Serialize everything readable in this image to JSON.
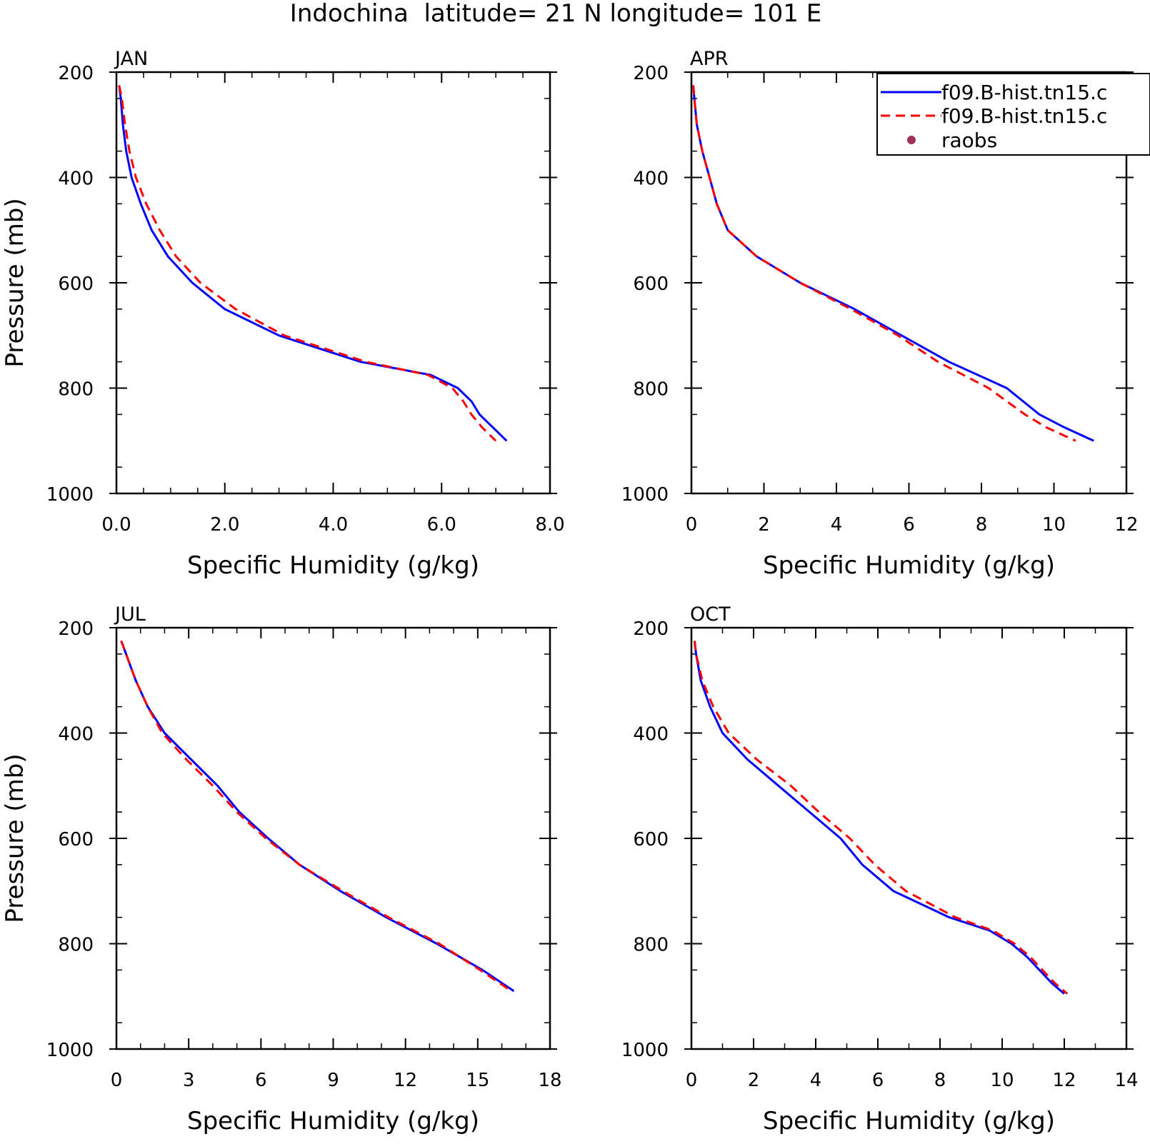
{
  "figure": {
    "title": "Indochina  latitude= 21 N longitude= 101 E"
  },
  "legend": {
    "placement": "top-right of APR panel",
    "entries": [
      {
        "label": "f09.B-hist.tn15.c",
        "color": "#0000ff",
        "style": "solid"
      },
      {
        "label": "f09.B-hist.tn15.c",
        "color": "#ff0000",
        "style": "dashed"
      },
      {
        "label": "raobs",
        "color": "#a0305a",
        "style": "marker"
      }
    ]
  },
  "chart_data": [
    {
      "type": "line",
      "panel_label": "JAN",
      "xlabel": "Specific Humidity (g/kg)",
      "ylabel": "Pressure (mb)",
      "xlim": [
        0,
        8
      ],
      "ylim": [
        1000,
        200
      ],
      "xticks": [
        "0.0",
        "2.0",
        "4.0",
        "6.0",
        "8.0"
      ],
      "yticks": [
        "200",
        "400",
        "600",
        "800",
        "1000"
      ],
      "y": [
        225,
        250,
        300,
        350,
        400,
        450,
        500,
        550,
        600,
        650,
        700,
        750,
        775,
        800,
        825,
        850,
        875,
        900
      ],
      "series": [
        {
          "name": "f09.B-hist.tn15.c",
          "color": "#0000ff",
          "style": "solid",
          "x": [
            0.05,
            0.08,
            0.12,
            0.18,
            0.28,
            0.45,
            0.65,
            0.95,
            1.4,
            2.0,
            3.0,
            4.5,
            5.8,
            6.3,
            6.55,
            6.7,
            6.95,
            7.2
          ]
        },
        {
          "name": "f09.B-hist.tn15.c",
          "color": "#ff0000",
          "style": "dashed",
          "x": [
            0.05,
            0.1,
            0.16,
            0.24,
            0.36,
            0.55,
            0.8,
            1.1,
            1.55,
            2.2,
            3.1,
            4.6,
            5.75,
            6.2,
            6.4,
            6.55,
            6.75,
            7.0
          ]
        }
      ]
    },
    {
      "type": "line",
      "panel_label": "APR",
      "xlabel": "Specific Humidity (g/kg)",
      "ylabel": "",
      "xlim": [
        0,
        12
      ],
      "ylim": [
        1000,
        200
      ],
      "xticks": [
        "0",
        "2",
        "4",
        "6",
        "8",
        "10",
        "12"
      ],
      "yticks": [
        "200",
        "400",
        "600",
        "800",
        "1000"
      ],
      "y": [
        225,
        250,
        300,
        350,
        400,
        450,
        500,
        550,
        600,
        650,
        700,
        750,
        800,
        850,
        875,
        900
      ],
      "series": [
        {
          "name": "f09.B-hist.tn15.c",
          "color": "#0000ff",
          "style": "solid",
          "x": [
            0.05,
            0.08,
            0.15,
            0.3,
            0.5,
            0.7,
            1.0,
            1.8,
            3.0,
            4.5,
            5.8,
            7.1,
            8.7,
            9.6,
            10.3,
            11.1
          ]
        },
        {
          "name": "f09.B-hist.tn15.c",
          "color": "#ff0000",
          "style": "dashed",
          "x": [
            0.05,
            0.08,
            0.15,
            0.3,
            0.5,
            0.7,
            1.0,
            1.8,
            3.0,
            4.4,
            5.7,
            6.8,
            8.2,
            9.2,
            9.8,
            10.6
          ]
        }
      ]
    },
    {
      "type": "line",
      "panel_label": "JUL",
      "xlabel": "Specific Humidity (g/kg)",
      "ylabel": "Pressure (mb)",
      "xlim": [
        0,
        18
      ],
      "ylim": [
        1000,
        200
      ],
      "xticks": [
        "0",
        "3",
        "6",
        "9",
        "12",
        "15",
        "18"
      ],
      "yticks": [
        "200",
        "400",
        "600",
        "800",
        "1000"
      ],
      "y": [
        225,
        250,
        300,
        350,
        400,
        450,
        500,
        550,
        600,
        650,
        700,
        750,
        800,
        850,
        890
      ],
      "series": [
        {
          "name": "f09.B-hist.tn15.c",
          "color": "#0000ff",
          "style": "solid",
          "x": [
            0.2,
            0.4,
            0.8,
            1.3,
            2.0,
            3.1,
            4.2,
            5.1,
            6.3,
            7.6,
            9.3,
            11.2,
            13.3,
            15.2,
            16.5
          ]
        },
        {
          "name": "f09.B-hist.tn15.c",
          "color": "#ff0000",
          "style": "dashed",
          "x": [
            0.2,
            0.4,
            0.8,
            1.3,
            1.9,
            2.9,
            4.0,
            5.0,
            6.2,
            7.6,
            9.4,
            11.3,
            13.4,
            15.1,
            16.4
          ]
        }
      ]
    },
    {
      "type": "line",
      "panel_label": "OCT",
      "xlabel": "Specific Humidity (g/kg)",
      "ylabel": "",
      "xlim": [
        0,
        14
      ],
      "ylim": [
        1000,
        200
      ],
      "xticks": [
        "0",
        "2",
        "4",
        "6",
        "8",
        "10",
        "12",
        "14"
      ],
      "yticks": [
        "200",
        "400",
        "600",
        "800",
        "1000"
      ],
      "y": [
        225,
        250,
        300,
        350,
        400,
        450,
        500,
        550,
        600,
        650,
        700,
        750,
        775,
        800,
        825,
        850,
        875,
        895
      ],
      "series": [
        {
          "name": "f09.B-hist.tn15.c",
          "color": "#0000ff",
          "style": "solid",
          "x": [
            0.1,
            0.15,
            0.3,
            0.6,
            1.0,
            1.8,
            2.8,
            3.8,
            4.8,
            5.5,
            6.5,
            8.3,
            9.6,
            10.3,
            10.8,
            11.2,
            11.6,
            12.0
          ]
        },
        {
          "name": "f09.B-hist.tn15.c",
          "color": "#ff0000",
          "style": "dashed",
          "x": [
            0.1,
            0.15,
            0.35,
            0.7,
            1.2,
            2.1,
            3.2,
            4.1,
            5.1,
            5.9,
            6.9,
            8.5,
            9.7,
            10.4,
            10.9,
            11.3,
            11.7,
            12.1
          ]
        }
      ]
    }
  ]
}
